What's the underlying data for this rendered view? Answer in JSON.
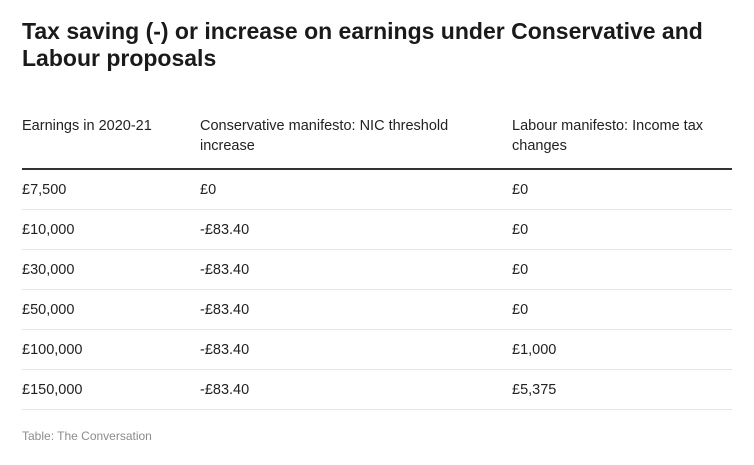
{
  "title": "Tax saving (-) or increase on earnings under Conservative and Labour proposals",
  "table": {
    "headers": [
      "Earnings in 2020-21",
      "Conservative manifesto: NIC threshold increase",
      "Labour manifesto: Income tax changes"
    ],
    "rows": [
      [
        "£7,500",
        "£0",
        "£0"
      ],
      [
        "£10,000",
        "-£83.40",
        "£0"
      ],
      [
        "£30,000",
        "-£83.40",
        "£0"
      ],
      [
        "£50,000",
        "-£83.40",
        "£0"
      ],
      [
        "£100,000",
        "-£83.40",
        "£1,000"
      ],
      [
        "£150,000",
        "-£83.40",
        "£5,375"
      ]
    ]
  },
  "source": "Table: The Conversation"
}
